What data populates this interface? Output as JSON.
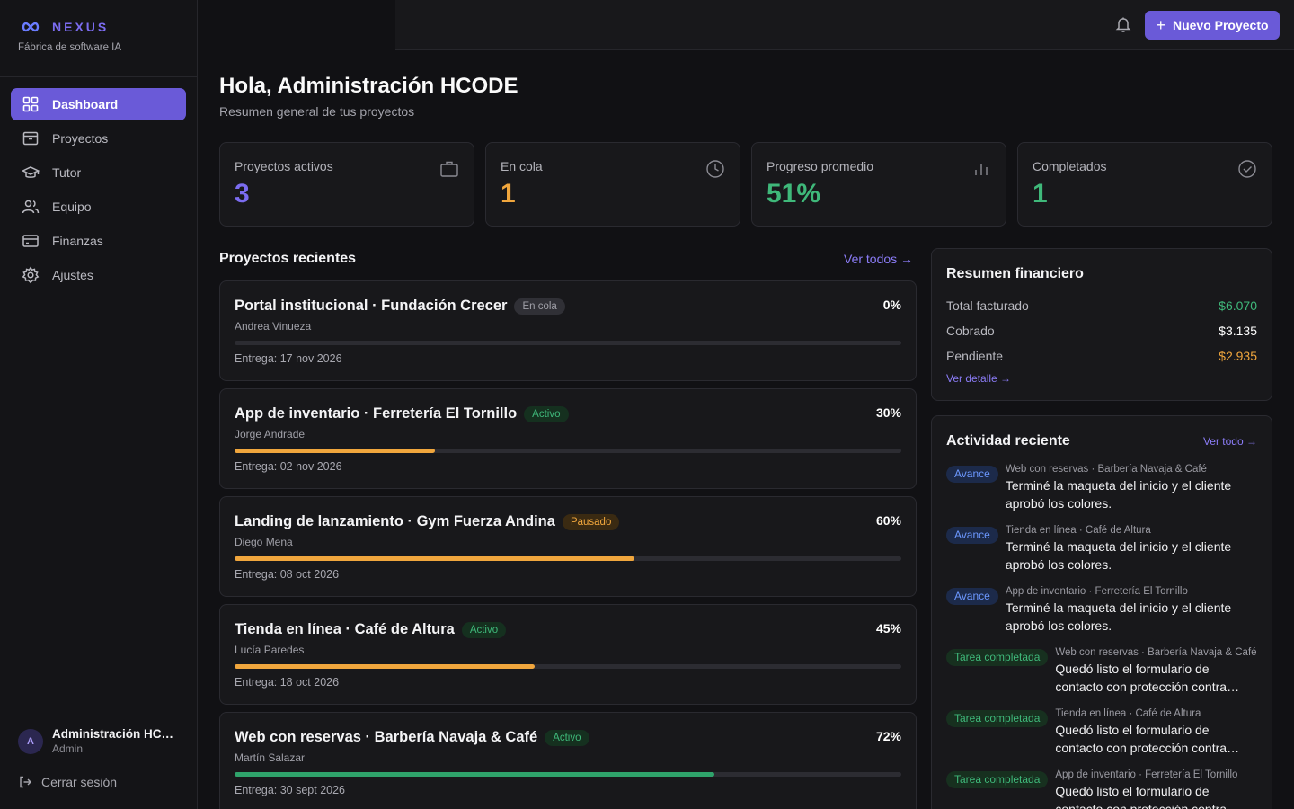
{
  "brand": {
    "name": "NEXUS",
    "subtitle": "Fábrica de software IA"
  },
  "nav": [
    {
      "label": "Dashboard",
      "icon": "grid-icon",
      "active": true
    },
    {
      "label": "Proyectos",
      "icon": "folder-icon"
    },
    {
      "label": "Tutor",
      "icon": "graduation-cap-icon"
    },
    {
      "label": "Equipo",
      "icon": "users-icon"
    },
    {
      "label": "Finanzas",
      "icon": "credit-card-icon"
    },
    {
      "label": "Ajustes",
      "icon": "gear-icon"
    }
  ],
  "user": {
    "initial": "A",
    "name": "Administración HCODE",
    "role": "Admin",
    "logout": "Cerrar sesión"
  },
  "topbar": {
    "new_project": "Nuevo Proyecto"
  },
  "header": {
    "greeting": "Hola, Administración HCODE",
    "subtitle": "Resumen general de tus proyectos"
  },
  "stats": [
    {
      "label": "Proyectos activos",
      "value": "3",
      "color": "#7b6cf0",
      "icon": "briefcase-icon"
    },
    {
      "label": "En cola",
      "value": "1",
      "color": "#f0a63d",
      "icon": "clock-icon"
    },
    {
      "label": "Progreso promedio",
      "value": "51%",
      "color": "#3fb87a",
      "icon": "bar-chart-icon"
    },
    {
      "label": "Completados",
      "value": "1",
      "color": "#3fb87a",
      "icon": "check-circle-icon"
    }
  ],
  "recent": {
    "title": "Proyectos recientes",
    "view_all": "Ver todos →",
    "projects": [
      {
        "title": "Portal institucional · Fundación Crecer",
        "status": "En cola",
        "status_kind": "cola",
        "owner": "Andrea Vinueza",
        "progress": 0,
        "progress_label": "0%",
        "due": "Entrega: 17 nov 2026",
        "color": "#f0a63d"
      },
      {
        "title": "App de inventario · Ferretería El Tornillo",
        "status": "Activo",
        "status_kind": "activo",
        "owner": "Jorge Andrade",
        "progress": 30,
        "progress_label": "30%",
        "due": "Entrega: 02 nov 2026",
        "color": "#f0a63d"
      },
      {
        "title": "Landing de lanzamiento · Gym Fuerza Andina",
        "status": "Pausado",
        "status_kind": "pausado",
        "owner": "Diego Mena",
        "progress": 60,
        "progress_label": "60%",
        "due": "Entrega: 08 oct 2026",
        "color": "#f0a63d"
      },
      {
        "title": "Tienda en línea · Café de Altura",
        "status": "Activo",
        "status_kind": "activo",
        "owner": "Lucía Paredes",
        "progress": 45,
        "progress_label": "45%",
        "due": "Entrega: 18 oct 2026",
        "color": "#f0a63d"
      },
      {
        "title": "Web con reservas · Barbería Navaja & Café",
        "status": "Activo",
        "status_kind": "activo",
        "owner": "Martín Salazar",
        "progress": 72,
        "progress_label": "72%",
        "due": "Entrega: 30 sept 2026",
        "color": "#2fa36b"
      }
    ]
  },
  "finance": {
    "title": "Resumen financiero",
    "rows": [
      {
        "label": "Total facturado",
        "value": "$6.070",
        "color": "#3fb87a"
      },
      {
        "label": "Cobrado",
        "value": "$3.135",
        "color": "#ffffff"
      },
      {
        "label": "Pendiente",
        "value": "$2.935",
        "color": "#f0a63d"
      }
    ],
    "detail": "Ver detalle →"
  },
  "activity": {
    "title": "Actividad reciente",
    "view_all": "Ver todo →",
    "items": [
      {
        "badge": "Avance",
        "kind": "avance",
        "meta": "Web con reservas · Barbería Navaja & Café",
        "text": "Terminé la maqueta del inicio y el cliente aprobó los colores."
      },
      {
        "badge": "Avance",
        "kind": "avance",
        "meta": "Tienda en línea · Café de Altura",
        "text": "Terminé la maqueta del inicio y el cliente aprobó los colores."
      },
      {
        "badge": "Avance",
        "kind": "avance",
        "meta": "App de inventario · Ferretería El Tornillo",
        "text": "Terminé la maqueta del inicio y el cliente aprobó los colores."
      },
      {
        "badge": "Tarea completada",
        "kind": "tarea",
        "meta": "Web con reservas · Barbería Navaja & Café",
        "text": "Quedó listo el formulario de contacto con protección contra spam."
      },
      {
        "badge": "Tarea completada",
        "kind": "tarea",
        "meta": "Tienda en línea · Café de Altura",
        "text": "Quedó listo el formulario de contacto con protección contra spam."
      },
      {
        "badge": "Tarea completada",
        "kind": "tarea",
        "meta": "App de inventario · Ferretería El Tornillo",
        "text": "Quedó listo el formulario de contacto con protección contra spam."
      }
    ]
  }
}
